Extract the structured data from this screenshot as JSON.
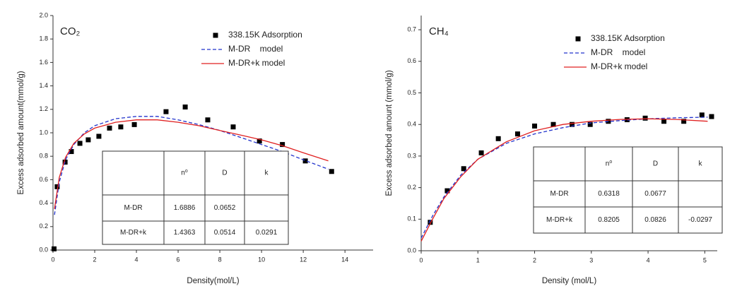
{
  "chart_data": [
    {
      "type": "line",
      "title": "CO₂",
      "xlabel": "Density(mol/L)",
      "ylabel": "Excess adsorbed amount(mmol/g)",
      "xlim": [
        0,
        15.35
      ],
      "xticks": [
        0,
        2,
        4,
        6,
        8,
        10,
        12,
        14
      ],
      "ylim": [
        0,
        2.0
      ],
      "yticks": [
        {
          "value": 0,
          "label": "0.0"
        },
        0.2,
        0.4,
        0.6,
        0.8,
        {
          "value": 1,
          "label": "1.0"
        },
        1.2,
        1.4,
        1.6,
        1.8,
        {
          "value": 2,
          "label": "2.0"
        }
      ],
      "series": [
        {
          "name": "338.15K Adsorption",
          "type": "scatter",
          "color": "#000000",
          "x": [
            0.05,
            0.2,
            0.58,
            0.88,
            1.29,
            1.69,
            2.2,
            2.71,
            3.25,
            3.9,
            5.42,
            6.34,
            7.42,
            8.64,
            9.9,
            11.0,
            12.1,
            13.36
          ],
          "values": [
            0.01,
            0.54,
            0.75,
            0.84,
            0.91,
            0.94,
            0.97,
            1.04,
            1.05,
            1.07,
            1.18,
            1.22,
            1.11,
            1.05,
            0.93,
            0.9,
            0.76,
            0.67
          ]
        },
        {
          "name": "M-DR    model",
          "type": "line",
          "dashed": true,
          "color": "#2233cc",
          "x": [
            0.07,
            0.3,
            0.6,
            1,
            1.5,
            2,
            3,
            4,
            5,
            6,
            7,
            8,
            9,
            10,
            11,
            12,
            13.2
          ],
          "values": [
            0.3,
            0.58,
            0.77,
            0.9,
            1.0,
            1.06,
            1.12,
            1.14,
            1.14,
            1.11,
            1.07,
            1.02,
            0.96,
            0.9,
            0.84,
            0.77,
            0.69
          ]
        },
        {
          "name": "M-DR+k model",
          "type": "line",
          "dashed": false,
          "color": "#e02020",
          "x": [
            0.07,
            0.3,
            0.6,
            1,
            1.5,
            2,
            3,
            4,
            5,
            6,
            7,
            8,
            9,
            10,
            11,
            12,
            13.2
          ],
          "values": [
            0.35,
            0.62,
            0.79,
            0.91,
            0.99,
            1.04,
            1.09,
            1.11,
            1.11,
            1.09,
            1.06,
            1.02,
            0.98,
            0.94,
            0.89,
            0.83,
            0.76
          ]
        }
      ],
      "table": {
        "rows": [
          [
            null,
            "n⁰",
            "D",
            "k"
          ],
          [
            "M-DR",
            1.6886,
            0.0652,
            null
          ],
          [
            "M-DR+k",
            1.4363,
            0.0514,
            0.0291
          ]
        ]
      }
    },
    {
      "type": "line",
      "title": "CH₄",
      "xlabel": "Density (mol/L)",
      "ylabel": "Excess adsorbed amount (mmol/g)",
      "xlim": [
        0,
        5.22
      ],
      "xticks": [
        0,
        1,
        2,
        3,
        4,
        5
      ],
      "ylim": [
        0,
        0.745
      ],
      "yticks": [
        {
          "value": 0,
          "label": "0.0"
        },
        0.1,
        0.2,
        0.3,
        0.4,
        0.5,
        0.6,
        0.7
      ],
      "series": [
        {
          "name": "338.15K Adsorption",
          "type": "scatter",
          "color": "#000000",
          "x": [
            0.16,
            0.46,
            0.75,
            1.06,
            1.36,
            1.7,
            2.0,
            2.33,
            2.66,
            2.98,
            3.3,
            3.63,
            3.95,
            4.28,
            4.63,
            4.95,
            5.12
          ],
          "values": [
            0.09,
            0.19,
            0.26,
            0.31,
            0.355,
            0.37,
            0.395,
            0.4,
            0.4,
            0.4,
            0.41,
            0.415,
            0.42,
            0.41,
            0.41,
            0.43,
            0.425
          ]
        },
        {
          "name": "M-DR    model",
          "type": "line",
          "dashed": true,
          "color": "#2233cc",
          "x": [
            0,
            0.2,
            0.4,
            0.7,
            1,
            1.5,
            2,
            2.5,
            3,
            3.5,
            4,
            4.5,
            5.05
          ],
          "values": [
            0.04,
            0.11,
            0.17,
            0.24,
            0.29,
            0.34,
            0.37,
            0.39,
            0.405,
            0.412,
            0.418,
            0.421,
            0.423
          ]
        },
        {
          "name": "M-DR+k model",
          "type": "line",
          "dashed": false,
          "color": "#e02020",
          "x": [
            0,
            0.2,
            0.4,
            0.7,
            1,
            1.5,
            2,
            2.5,
            3,
            3.5,
            4,
            4.5,
            5.05
          ],
          "values": [
            0.03,
            0.1,
            0.165,
            0.235,
            0.29,
            0.345,
            0.38,
            0.4,
            0.41,
            0.416,
            0.418,
            0.416,
            0.41
          ]
        }
      ],
      "table": {
        "rows": [
          [
            null,
            "n⁰",
            "D",
            "k"
          ],
          [
            "M-DR",
            0.6318,
            0.0677,
            null
          ],
          [
            "M-DR+k",
            0.8205,
            0.0826,
            -0.0297
          ]
        ]
      }
    }
  ]
}
